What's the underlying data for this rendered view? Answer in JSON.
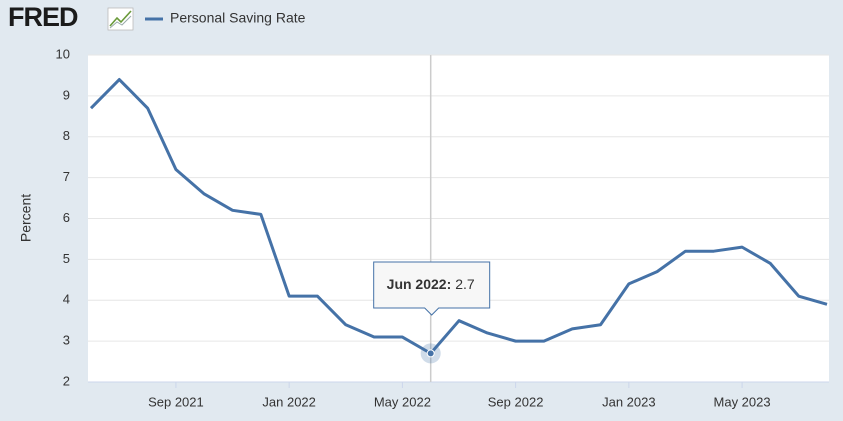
{
  "logo": "FRED",
  "chart_data": {
    "type": "line",
    "y_label": "Percent",
    "x": [
      "2021-06",
      "2021-07",
      "2021-08",
      "2021-09",
      "2021-10",
      "2021-11",
      "2021-12",
      "2022-01",
      "2022-02",
      "2022-03",
      "2022-04",
      "2022-05",
      "2022-06",
      "2022-07",
      "2022-08",
      "2022-09",
      "2022-10",
      "2022-11",
      "2022-12",
      "2023-01",
      "2023-02",
      "2023-03",
      "2023-04",
      "2023-05",
      "2023-06",
      "2023-07",
      "2023-08"
    ],
    "series": [
      {
        "name": "Personal Saving Rate",
        "color": "#4572a7",
        "values": [
          8.7,
          9.4,
          8.7,
          7.2,
          6.6,
          6.2,
          6.1,
          4.1,
          4.1,
          3.4,
          3.1,
          3.1,
          2.7,
          3.5,
          3.2,
          3.0,
          3.0,
          3.3,
          3.4,
          4.4,
          4.7,
          5.2,
          5.2,
          5.3,
          4.9,
          4.1,
          3.9
        ]
      }
    ],
    "xlim": [
      "2021-06",
      "2023-08"
    ],
    "xticks": [
      {
        "value": "2021-09",
        "label": "Sep 2021"
      },
      {
        "value": "2022-01",
        "label": "Jan 2022"
      },
      {
        "value": "2022-05",
        "label": "May 2022"
      },
      {
        "value": "2022-09",
        "label": "Sep 2022"
      },
      {
        "value": "2023-01",
        "label": "Jan 2023"
      },
      {
        "value": "2023-05",
        "label": "May 2023"
      }
    ],
    "ylim": [
      2,
      10
    ],
    "yticks": [
      2,
      3,
      4,
      5,
      6,
      7,
      8,
      9,
      10
    ],
    "grid": true,
    "tooltip": {
      "x": "2022-06",
      "label": "Jun 2022:",
      "value": 2.7
    }
  }
}
